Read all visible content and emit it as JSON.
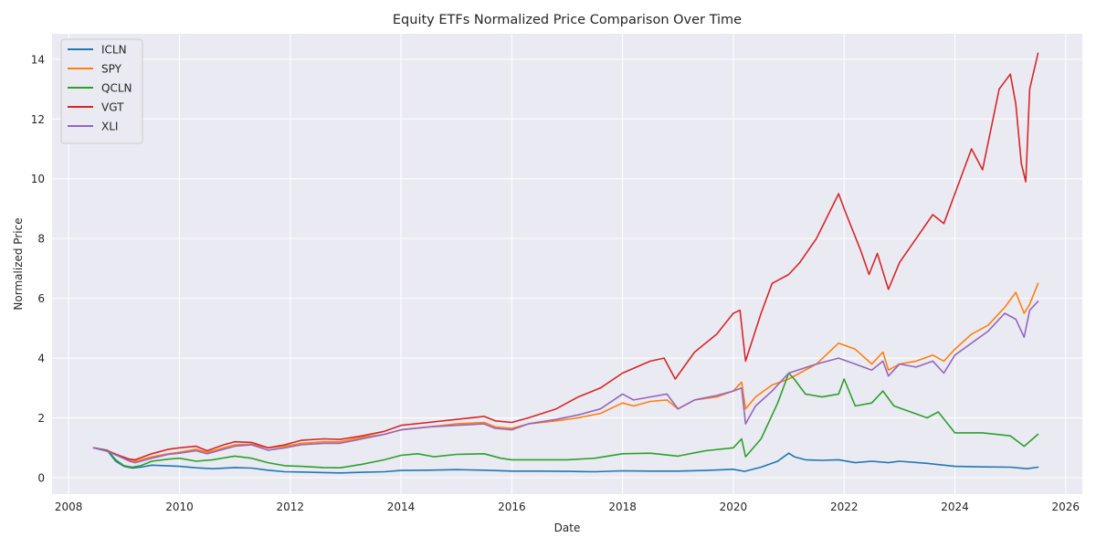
{
  "chart_data": {
    "type": "line",
    "title": "Equity ETFs Normalized Price Comparison Over Time",
    "xlabel": "Date",
    "ylabel": "Normalized Price",
    "xlim": [
      2007.7,
      2026.3
    ],
    "ylim": [
      -0.55,
      14.85
    ],
    "x_ticks": [
      "2008",
      "2010",
      "2012",
      "2014",
      "2016",
      "2018",
      "2020",
      "2022",
      "2024",
      "2026"
    ],
    "y_ticks": [
      "0",
      "2",
      "4",
      "6",
      "8",
      "10",
      "12",
      "14"
    ],
    "grid": true,
    "legend_position": "top-left",
    "x_unit": "year",
    "series": [
      {
        "name": "ICLN",
        "color": "#1f77b4",
        "x": [
          2008.45,
          2008.7,
          2008.85,
          2009.0,
          2009.15,
          2009.3,
          2009.5,
          2009.75,
          2010.0,
          2010.3,
          2010.6,
          2011.0,
          2011.3,
          2011.6,
          2011.9,
          2012.2,
          2012.6,
          2012.9,
          2013.3,
          2013.7,
          2014.0,
          2014.5,
          2015.0,
          2015.5,
          2016.0,
          2016.5,
          2017.0,
          2017.5,
          2018.0,
          2018.5,
          2019.0,
          2019.5,
          2020.0,
          2020.2,
          2020.5,
          2020.8,
          2021.0,
          2021.1,
          2021.3,
          2021.6,
          2021.9,
          2022.2,
          2022.5,
          2022.8,
          2023.0,
          2023.5,
          2024.0,
          2024.5,
          2025.0,
          2025.3,
          2025.5
        ],
        "values": [
          1.0,
          0.9,
          0.55,
          0.38,
          0.32,
          0.35,
          0.42,
          0.4,
          0.38,
          0.33,
          0.3,
          0.34,
          0.32,
          0.25,
          0.2,
          0.19,
          0.17,
          0.16,
          0.18,
          0.2,
          0.24,
          0.25,
          0.27,
          0.25,
          0.22,
          0.22,
          0.21,
          0.2,
          0.23,
          0.22,
          0.22,
          0.24,
          0.28,
          0.21,
          0.35,
          0.55,
          0.82,
          0.7,
          0.6,
          0.58,
          0.6,
          0.5,
          0.55,
          0.5,
          0.55,
          0.48,
          0.38,
          0.36,
          0.35,
          0.3,
          0.35
        ]
      },
      {
        "name": "SPY",
        "color": "#ff7f0e",
        "x": [
          2008.45,
          2008.7,
          2008.9,
          2009.1,
          2009.2,
          2009.5,
          2009.8,
          2010.0,
          2010.3,
          2010.5,
          2010.8,
          2011.0,
          2011.3,
          2011.6,
          2011.9,
          2012.2,
          2012.6,
          2012.9,
          2013.3,
          2013.7,
          2014.0,
          2014.5,
          2015.0,
          2015.5,
          2015.7,
          2016.0,
          2016.3,
          2016.8,
          2017.2,
          2017.6,
          2018.0,
          2018.2,
          2018.5,
          2018.8,
          2019.0,
          2019.3,
          2019.7,
          2020.0,
          2020.15,
          2020.22,
          2020.4,
          2020.7,
          2021.0,
          2021.5,
          2021.9,
          2022.2,
          2022.5,
          2022.7,
          2022.8,
          2023.0,
          2023.3,
          2023.6,
          2023.8,
          2024.0,
          2024.3,
          2024.6,
          2024.9,
          2025.1,
          2025.25,
          2025.35,
          2025.5
        ],
        "values": [
          1.0,
          0.9,
          0.75,
          0.6,
          0.55,
          0.7,
          0.8,
          0.85,
          0.95,
          0.85,
          1.0,
          1.1,
          1.12,
          1.0,
          1.05,
          1.15,
          1.2,
          1.2,
          1.35,
          1.45,
          1.6,
          1.7,
          1.8,
          1.85,
          1.7,
          1.65,
          1.8,
          1.9,
          2.0,
          2.15,
          2.5,
          2.4,
          2.55,
          2.6,
          2.3,
          2.6,
          2.7,
          2.9,
          3.2,
          2.3,
          2.7,
          3.1,
          3.3,
          3.8,
          4.5,
          4.3,
          3.8,
          4.2,
          3.6,
          3.8,
          3.9,
          4.1,
          3.9,
          4.3,
          4.8,
          5.1,
          5.7,
          6.2,
          5.5,
          5.8,
          6.5
        ]
      },
      {
        "name": "QCLN",
        "color": "#2ca02c",
        "x": [
          2008.45,
          2008.7,
          2008.85,
          2009.0,
          2009.15,
          2009.3,
          2009.5,
          2009.8,
          2010.0,
          2010.3,
          2010.6,
          2011.0,
          2011.3,
          2011.6,
          2011.9,
          2012.2,
          2012.6,
          2012.9,
          2013.3,
          2013.7,
          2014.0,
          2014.3,
          2014.6,
          2015.0,
          2015.5,
          2015.8,
          2016.0,
          2016.5,
          2017.0,
          2017.5,
          2018.0,
          2018.5,
          2019.0,
          2019.5,
          2020.0,
          2020.15,
          2020.22,
          2020.5,
          2020.8,
          2021.0,
          2021.1,
          2021.3,
          2021.6,
          2021.9,
          2022.0,
          2022.2,
          2022.5,
          2022.7,
          2022.9,
          2023.2,
          2023.5,
          2023.7,
          2024.0,
          2024.5,
          2025.0,
          2025.25,
          2025.5
        ],
        "values": [
          1.0,
          0.92,
          0.6,
          0.4,
          0.35,
          0.4,
          0.55,
          0.62,
          0.65,
          0.55,
          0.6,
          0.72,
          0.65,
          0.5,
          0.4,
          0.38,
          0.34,
          0.33,
          0.45,
          0.6,
          0.75,
          0.8,
          0.7,
          0.78,
          0.8,
          0.65,
          0.6,
          0.6,
          0.6,
          0.65,
          0.8,
          0.82,
          0.72,
          0.9,
          1.0,
          1.3,
          0.7,
          1.3,
          2.5,
          3.5,
          3.3,
          2.8,
          2.7,
          2.8,
          3.3,
          2.4,
          2.5,
          2.9,
          2.4,
          2.2,
          2.0,
          2.2,
          1.5,
          1.5,
          1.4,
          1.05,
          1.45
        ]
      },
      {
        "name": "VGT",
        "color": "#d62728",
        "x": [
          2008.45,
          2008.7,
          2008.9,
          2009.1,
          2009.2,
          2009.5,
          2009.8,
          2010.0,
          2010.3,
          2010.5,
          2010.8,
          2011.0,
          2011.3,
          2011.6,
          2011.9,
          2012.2,
          2012.6,
          2012.9,
          2013.3,
          2013.7,
          2014.0,
          2014.5,
          2015.0,
          2015.5,
          2015.7,
          2016.0,
          2016.3,
          2016.8,
          2017.2,
          2017.6,
          2018.0,
          2018.5,
          2018.75,
          2018.95,
          2019.3,
          2019.7,
          2020.0,
          2020.12,
          2020.22,
          2020.5,
          2020.7,
          2021.0,
          2021.2,
          2021.5,
          2021.9,
          2022.0,
          2022.3,
          2022.45,
          2022.6,
          2022.8,
          2023.0,
          2023.3,
          2023.6,
          2023.8,
          2024.0,
          2024.3,
          2024.5,
          2024.8,
          2025.0,
          2025.1,
          2025.2,
          2025.28,
          2025.35,
          2025.5
        ],
        "values": [
          1.0,
          0.9,
          0.75,
          0.62,
          0.6,
          0.8,
          0.95,
          1.0,
          1.05,
          0.9,
          1.1,
          1.2,
          1.18,
          1.0,
          1.1,
          1.25,
          1.3,
          1.28,
          1.4,
          1.55,
          1.75,
          1.85,
          1.95,
          2.05,
          1.9,
          1.85,
          2.0,
          2.3,
          2.7,
          3.0,
          3.5,
          3.9,
          4.0,
          3.3,
          4.2,
          4.8,
          5.5,
          5.6,
          3.9,
          5.5,
          6.5,
          6.8,
          7.2,
          8.0,
          9.5,
          9.0,
          7.6,
          6.8,
          7.5,
          6.3,
          7.2,
          8.0,
          8.8,
          8.5,
          9.5,
          11.0,
          10.3,
          13.0,
          13.5,
          12.5,
          10.5,
          9.9,
          13.0,
          14.2
        ]
      },
      {
        "name": "XLI",
        "color": "#9467bd",
        "x": [
          2008.45,
          2008.7,
          2008.9,
          2009.1,
          2009.2,
          2009.5,
          2009.8,
          2010.0,
          2010.3,
          2010.5,
          2010.8,
          2011.0,
          2011.3,
          2011.6,
          2011.9,
          2012.2,
          2012.6,
          2012.9,
          2013.3,
          2013.7,
          2014.0,
          2014.5,
          2015.0,
          2015.5,
          2015.7,
          2016.0,
          2016.3,
          2016.8,
          2017.2,
          2017.6,
          2018.0,
          2018.2,
          2018.5,
          2018.8,
          2019.0,
          2019.3,
          2019.7,
          2020.0,
          2020.15,
          2020.22,
          2020.4,
          2020.7,
          2021.0,
          2021.5,
          2021.9,
          2022.2,
          2022.5,
          2022.7,
          2022.8,
          2023.0,
          2023.3,
          2023.6,
          2023.8,
          2024.0,
          2024.3,
          2024.6,
          2024.9,
          2025.1,
          2025.25,
          2025.35,
          2025.5
        ],
        "values": [
          1.0,
          0.88,
          0.72,
          0.55,
          0.5,
          0.65,
          0.78,
          0.82,
          0.9,
          0.8,
          0.95,
          1.05,
          1.1,
          0.92,
          1.0,
          1.1,
          1.15,
          1.15,
          1.3,
          1.45,
          1.6,
          1.7,
          1.75,
          1.8,
          1.65,
          1.6,
          1.8,
          1.95,
          2.1,
          2.3,
          2.8,
          2.6,
          2.7,
          2.8,
          2.3,
          2.6,
          2.75,
          2.9,
          3.0,
          1.8,
          2.4,
          2.9,
          3.5,
          3.8,
          4.0,
          3.8,
          3.6,
          3.9,
          3.4,
          3.8,
          3.7,
          3.9,
          3.5,
          4.1,
          4.5,
          4.9,
          5.5,
          5.3,
          4.7,
          5.6,
          5.9
        ]
      }
    ]
  }
}
